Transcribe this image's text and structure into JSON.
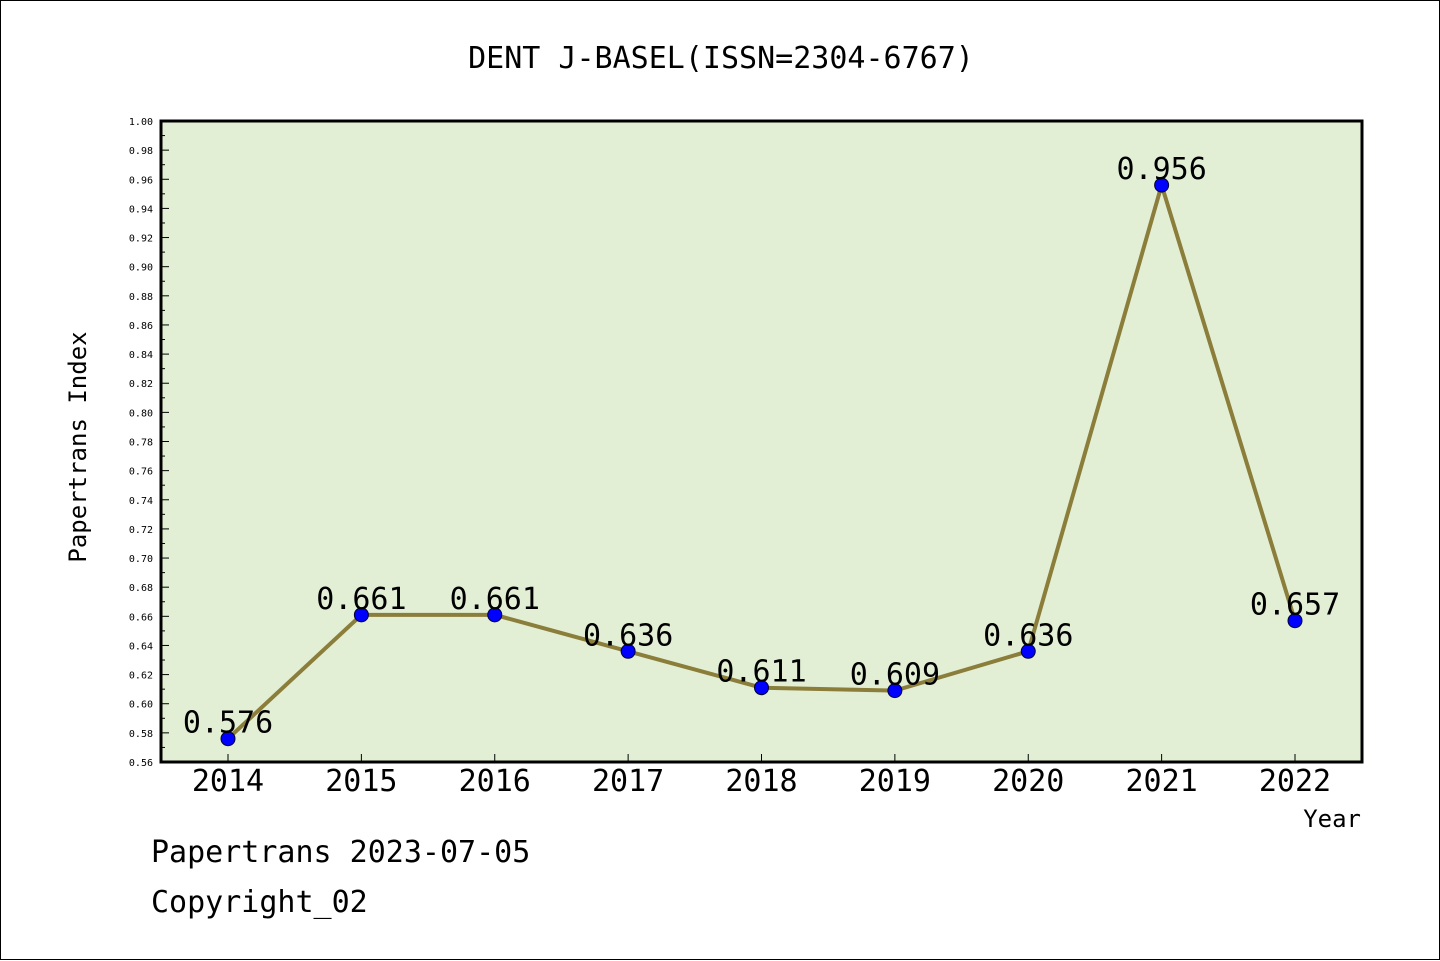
{
  "chart_data": {
    "type": "line",
    "title": "DENT J-BASEL(ISSN=2304-6767)",
    "xlabel": "Year",
    "ylabel": "Papertrans Index",
    "categories": [
      "2014",
      "2015",
      "2016",
      "2017",
      "2018",
      "2019",
      "2020",
      "2021",
      "2022"
    ],
    "series": [
      {
        "values": [
          0.576,
          0.661,
          0.661,
          0.636,
          0.611,
          0.609,
          0.636,
          0.956,
          0.657
        ],
        "labels": [
          "0.576",
          "0.661",
          "0.661",
          "0.636",
          "0.611",
          "0.609",
          "0.636",
          "0.956",
          "0.657"
        ]
      }
    ],
    "ylim": [
      0.56,
      1.0
    ],
    "ytick_step": 0.02,
    "grid": false,
    "legend": "none",
    "colors": {
      "plot_background": "#e2efd5",
      "line": "#8b7d3a",
      "marker": "#0000ff"
    }
  },
  "footer": {
    "line1": "Papertrans 2023-07-05",
    "line2": "Copyright_02"
  }
}
